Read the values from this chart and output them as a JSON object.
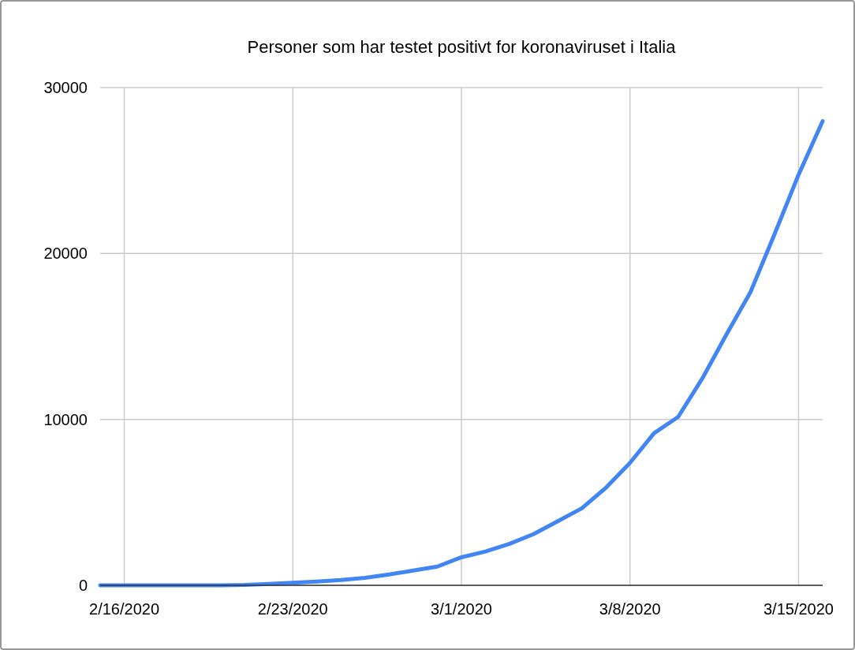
{
  "chart_data": {
    "type": "line",
    "title": "Personer som har testet positivt for koronaviruset i Italia",
    "x": [
      "2020-02-15",
      "2020-02-16",
      "2020-02-17",
      "2020-02-18",
      "2020-02-19",
      "2020-02-20",
      "2020-02-21",
      "2020-02-22",
      "2020-02-23",
      "2020-02-24",
      "2020-02-25",
      "2020-02-26",
      "2020-02-27",
      "2020-02-28",
      "2020-02-29",
      "2020-03-01",
      "2020-03-02",
      "2020-03-03",
      "2020-03-04",
      "2020-03-05",
      "2020-03-06",
      "2020-03-07",
      "2020-03-08",
      "2020-03-09",
      "2020-03-10",
      "2020-03-11",
      "2020-03-12",
      "2020-03-13",
      "2020-03-14",
      "2020-03-15",
      "2020-03-16"
    ],
    "series": [
      {
        "color": "#4285f4",
        "values": [
          0,
          0,
          0,
          0,
          0,
          0,
          20,
          80,
          150,
          230,
          320,
          450,
          650,
          890,
          1130,
          1690,
          2040,
          2500,
          3090,
          3860,
          4640,
          5880,
          7380,
          9170,
          10150,
          12460,
          15110,
          17660,
          21160,
          24750,
          27980
        ]
      }
    ],
    "xlim": [
      "2020-02-15",
      "2020-03-16"
    ],
    "xticks": [
      {
        "value": "2020-02-16",
        "label": "2/16/2020"
      },
      {
        "value": "2020-02-23",
        "label": "2/23/2020"
      },
      {
        "value": "2020-03-01",
        "label": "3/1/2020"
      },
      {
        "value": "2020-03-08",
        "label": "3/8/2020"
      },
      {
        "value": "2020-03-15",
        "label": "3/15/2020"
      }
    ],
    "ylim": [
      0,
      30000
    ],
    "yticks": [
      0,
      10000,
      20000,
      30000
    ],
    "grid": true
  }
}
